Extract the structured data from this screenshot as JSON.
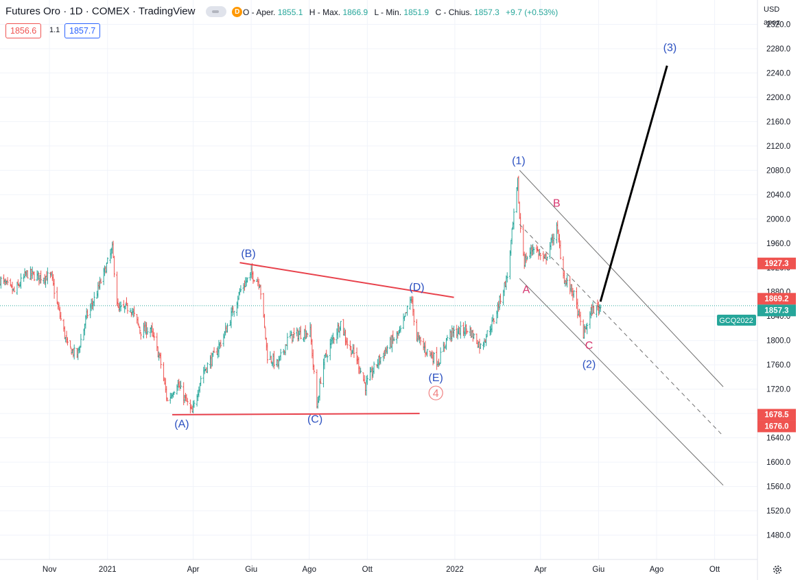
{
  "header": {
    "title": "Futures Oro · 1D · COMEX · TradingView",
    "badge": "D",
    "ohlc": [
      {
        "label": "O - Aper.",
        "value": "1855.1"
      },
      {
        "label": "H - Max.",
        "value": "1866.9"
      },
      {
        "label": "L - Min.",
        "value": "1851.9"
      },
      {
        "label": "C - Chius.",
        "value": "1857.3"
      },
      {
        "label": "",
        "value": "+9.7 (+0.53%)"
      }
    ],
    "bid": "1856.6",
    "spread": "1.1",
    "ask": "1857.7"
  },
  "currency": "USD",
  "currency_note": "apoz",
  "colors": {
    "up": "#26a69a",
    "down": "#ef5350",
    "wave": "#2a4fc0",
    "abc": "#d6336c",
    "trend": "#e8414b",
    "channel": "#6f6f6f"
  },
  "chart_data": {
    "type": "bar",
    "symbol": "GCQ2022",
    "x_tick_labels": [
      "Nov",
      "2021",
      "Apr",
      "Giu",
      "Ago",
      "Ott",
      "2022",
      "Apr",
      "Giu",
      "Ago",
      "Ott"
    ],
    "x_tick_dates": [
      "2020-11-01",
      "2021-01-01",
      "2021-04-01",
      "2021-06-01",
      "2021-08-01",
      "2021-10-01",
      "2022-01-01",
      "2022-04-01",
      "2022-06-01",
      "2022-08-01",
      "2022-10-01"
    ],
    "x_range": [
      "2020-09-10",
      "2022-11-15"
    ],
    "ylim": [
      1440,
      2360
    ],
    "y_ticks": [
      1480,
      1520,
      1560,
      1600,
      1640,
      1680,
      1720,
      1760,
      1800,
      1840,
      1880,
      1920,
      1960,
      2000,
      2040,
      2080,
      2120,
      2160,
      2200,
      2240,
      2280,
      2320
    ],
    "y_tick_labels": [
      "1480.0",
      "1520.0",
      "1560.0",
      "1600.0",
      "1640.0",
      "1680.0",
      "1720.0",
      "1760.0",
      "1800.0",
      "1840.0",
      "1880.0",
      "1920.0",
      "1960.0",
      "2000.0",
      "2040.0",
      "2080.0",
      "2120.0",
      "2160.0",
      "2200.0",
      "2240.0",
      "2280.0",
      "2320.0"
    ],
    "last_price": 1857.3,
    "price_labels": [
      {
        "value": 1927.3,
        "text": "1927.3",
        "color": "#ef5350"
      },
      {
        "value": 1869.2,
        "text": "1869.2",
        "color": "#ef5350"
      },
      {
        "value": 1857.3,
        "text": "1857.3",
        "color": "#26a69a"
      },
      {
        "value": 1678.5,
        "text": "1678.5",
        "color": "#ef5350"
      },
      {
        "value": 1676.0,
        "text": "1676.0",
        "color": "#ef5350"
      }
    ],
    "price_path": [
      [
        "2020-09-10",
        1900
      ],
      [
        "2020-09-25",
        1880
      ],
      [
        "2020-10-08",
        1910
      ],
      [
        "2020-10-20",
        1905
      ],
      [
        "2020-11-03",
        1905
      ],
      [
        "2020-11-09",
        1860
      ],
      [
        "2020-11-20",
        1790
      ],
      [
        "2020-11-30",
        1775
      ],
      [
        "2020-12-10",
        1840
      ],
      [
        "2020-12-20",
        1875
      ],
      [
        "2021-01-06",
        1950
      ],
      [
        "2021-01-12",
        1850
      ],
      [
        "2021-01-25",
        1855
      ],
      [
        "2021-02-05",
        1815
      ],
      [
        "2021-02-15",
        1820
      ],
      [
        "2021-02-25",
        1770
      ],
      [
        "2021-03-05",
        1700
      ],
      [
        "2021-03-15",
        1730
      ],
      [
        "2021-03-31",
        1680
      ],
      [
        "2021-04-10",
        1745
      ],
      [
        "2021-04-25",
        1780
      ],
      [
        "2021-05-05",
        1815
      ],
      [
        "2021-05-20",
        1880
      ],
      [
        "2021-06-01",
        1910
      ],
      [
        "2021-06-10",
        1895
      ],
      [
        "2021-06-18",
        1775
      ],
      [
        "2021-06-29",
        1760
      ],
      [
        "2021-07-10",
        1805
      ],
      [
        "2021-07-20",
        1810
      ],
      [
        "2021-08-02",
        1815
      ],
      [
        "2021-08-09",
        1690
      ],
      [
        "2021-08-15",
        1760
      ],
      [
        "2021-08-25",
        1800
      ],
      [
        "2021-09-03",
        1830
      ],
      [
        "2021-09-10",
        1795
      ],
      [
        "2021-09-20",
        1770
      ],
      [
        "2021-09-29",
        1725
      ],
      [
        "2021-10-10",
        1760
      ],
      [
        "2021-10-25",
        1795
      ],
      [
        "2021-11-05",
        1815
      ],
      [
        "2021-11-16",
        1870
      ],
      [
        "2021-11-22",
        1805
      ],
      [
        "2021-12-01",
        1785
      ],
      [
        "2021-12-15",
        1765
      ],
      [
        "2021-12-25",
        1810
      ],
      [
        "2022-01-05",
        1815
      ],
      [
        "2022-01-15",
        1820
      ],
      [
        "2022-01-28",
        1790
      ],
      [
        "2022-02-10",
        1830
      ],
      [
        "2022-02-25",
        1905
      ],
      [
        "2022-03-08",
        2060
      ],
      [
        "2022-03-10",
        2000
      ],
      [
        "2022-03-15",
        1930
      ],
      [
        "2022-03-25",
        1955
      ],
      [
        "2022-04-05",
        1930
      ],
      [
        "2022-04-18",
        1985
      ],
      [
        "2022-04-26",
        1900
      ],
      [
        "2022-05-05",
        1880
      ],
      [
        "2022-05-16",
        1810
      ],
      [
        "2022-05-25",
        1850
      ],
      [
        "2022-06-03",
        1855
      ]
    ],
    "trend_lines": [
      {
        "name": "triangle-upper",
        "from": [
          "2021-05-20",
          1928
        ],
        "to": [
          "2021-12-31",
          1871
        ],
        "color": "#e8414b"
      },
      {
        "name": "triangle-lower",
        "from": [
          "2021-03-10",
          1678
        ],
        "to": [
          "2021-11-25",
          1680
        ],
        "color": "#e8414b"
      },
      {
        "name": "channel-upper",
        "from": [
          "2022-03-10",
          2080
        ],
        "to": [
          "2022-10-10",
          1724
        ],
        "color": "#6f6f6f"
      },
      {
        "name": "channel-lower",
        "from": [
          "2022-03-10",
          1902
        ],
        "to": [
          "2022-10-10",
          1562
        ],
        "color": "#6f6f6f"
      },
      {
        "name": "channel-middle",
        "from": [
          "2022-03-10",
          1991
        ],
        "to": [
          "2022-10-10",
          1643
        ],
        "color": "#6f6f6f",
        "dashed": true
      },
      {
        "name": "wave-3-projection",
        "from": [
          "2022-06-03",
          1864
        ],
        "to": [
          "2022-08-12",
          2252
        ],
        "color": "#000000"
      }
    ],
    "annotations": [
      {
        "text": "(A)",
        "date": "2021-03-20",
        "price": 1657,
        "color": "#2a4fc0"
      },
      {
        "text": "(B)",
        "date": "2021-05-29",
        "price": 1937,
        "color": "#2a4fc0"
      },
      {
        "text": "(C)",
        "date": "2021-08-07",
        "price": 1665,
        "color": "#2a4fc0"
      },
      {
        "text": "(D)",
        "date": "2021-11-22",
        "price": 1882,
        "color": "#2a4fc0"
      },
      {
        "text": "(E)",
        "date": "2021-12-12",
        "price": 1733,
        "color": "#2a4fc0"
      },
      {
        "text": "4",
        "date": "2021-12-12",
        "price": 1707,
        "color": "#f08080",
        "circled": true
      },
      {
        "text": "(1)",
        "date": "2022-03-09",
        "price": 2090,
        "color": "#2a4fc0"
      },
      {
        "text": "B",
        "date": "2022-04-18",
        "price": 2020,
        "color": "#d6336c"
      },
      {
        "text": "A",
        "date": "2022-03-17",
        "price": 1878,
        "color": "#d6336c"
      },
      {
        "text": "C",
        "date": "2022-05-22",
        "price": 1786,
        "color": "#d6336c"
      },
      {
        "text": "(2)",
        "date": "2022-05-22",
        "price": 1755,
        "color": "#2a4fc0"
      },
      {
        "text": "(3)",
        "date": "2022-08-15",
        "price": 2276,
        "color": "#2a4fc0"
      }
    ]
  }
}
